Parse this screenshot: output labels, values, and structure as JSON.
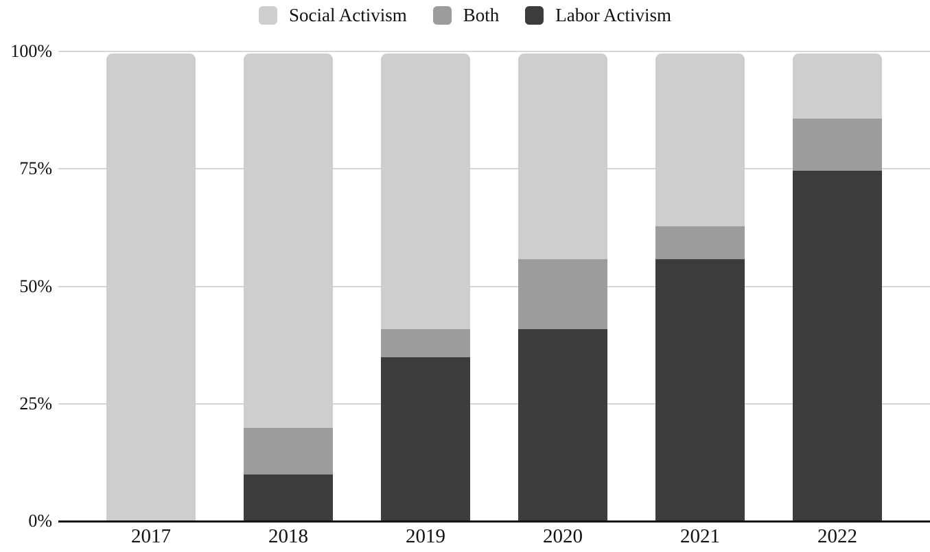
{
  "legend": {
    "items": [
      {
        "label": "Social Activism",
        "color": "#cecece"
      },
      {
        "label": "Both",
        "color": "#9c9c9c"
      },
      {
        "label": "Labor Activism",
        "color": "#3c3c3c"
      }
    ]
  },
  "chart_data": {
    "type": "bar",
    "stacked": true,
    "normalized_100pct": true,
    "title": "",
    "xlabel": "",
    "ylabel": "",
    "categories": [
      "2017",
      "2018",
      "2019",
      "2020",
      "2021",
      "2022"
    ],
    "series": [
      {
        "name": "Labor Activism",
        "color": "#3c3c3c",
        "values": [
          0,
          10,
          35,
          41,
          56,
          75
        ]
      },
      {
        "name": "Both",
        "color": "#9c9c9c",
        "values": [
          0,
          10,
          6,
          15,
          7,
          11
        ]
      },
      {
        "name": "Social Activism",
        "color": "#cecece",
        "values": [
          100,
          80,
          59,
          44,
          37,
          14
        ]
      }
    ],
    "stack_order_bottom_to_top": [
      "Labor Activism",
      "Both",
      "Social Activism"
    ],
    "y_axis": {
      "tick_labels": [
        "0%",
        "25%",
        "50%",
        "75%",
        "100%"
      ],
      "tick_values": [
        0,
        25,
        50,
        75,
        100
      ],
      "ylim": [
        0,
        100
      ]
    },
    "grid": "horizontal",
    "gridline_color": "#d6d6d6",
    "axis_line_color": "#141414",
    "legend_position": "top"
  }
}
